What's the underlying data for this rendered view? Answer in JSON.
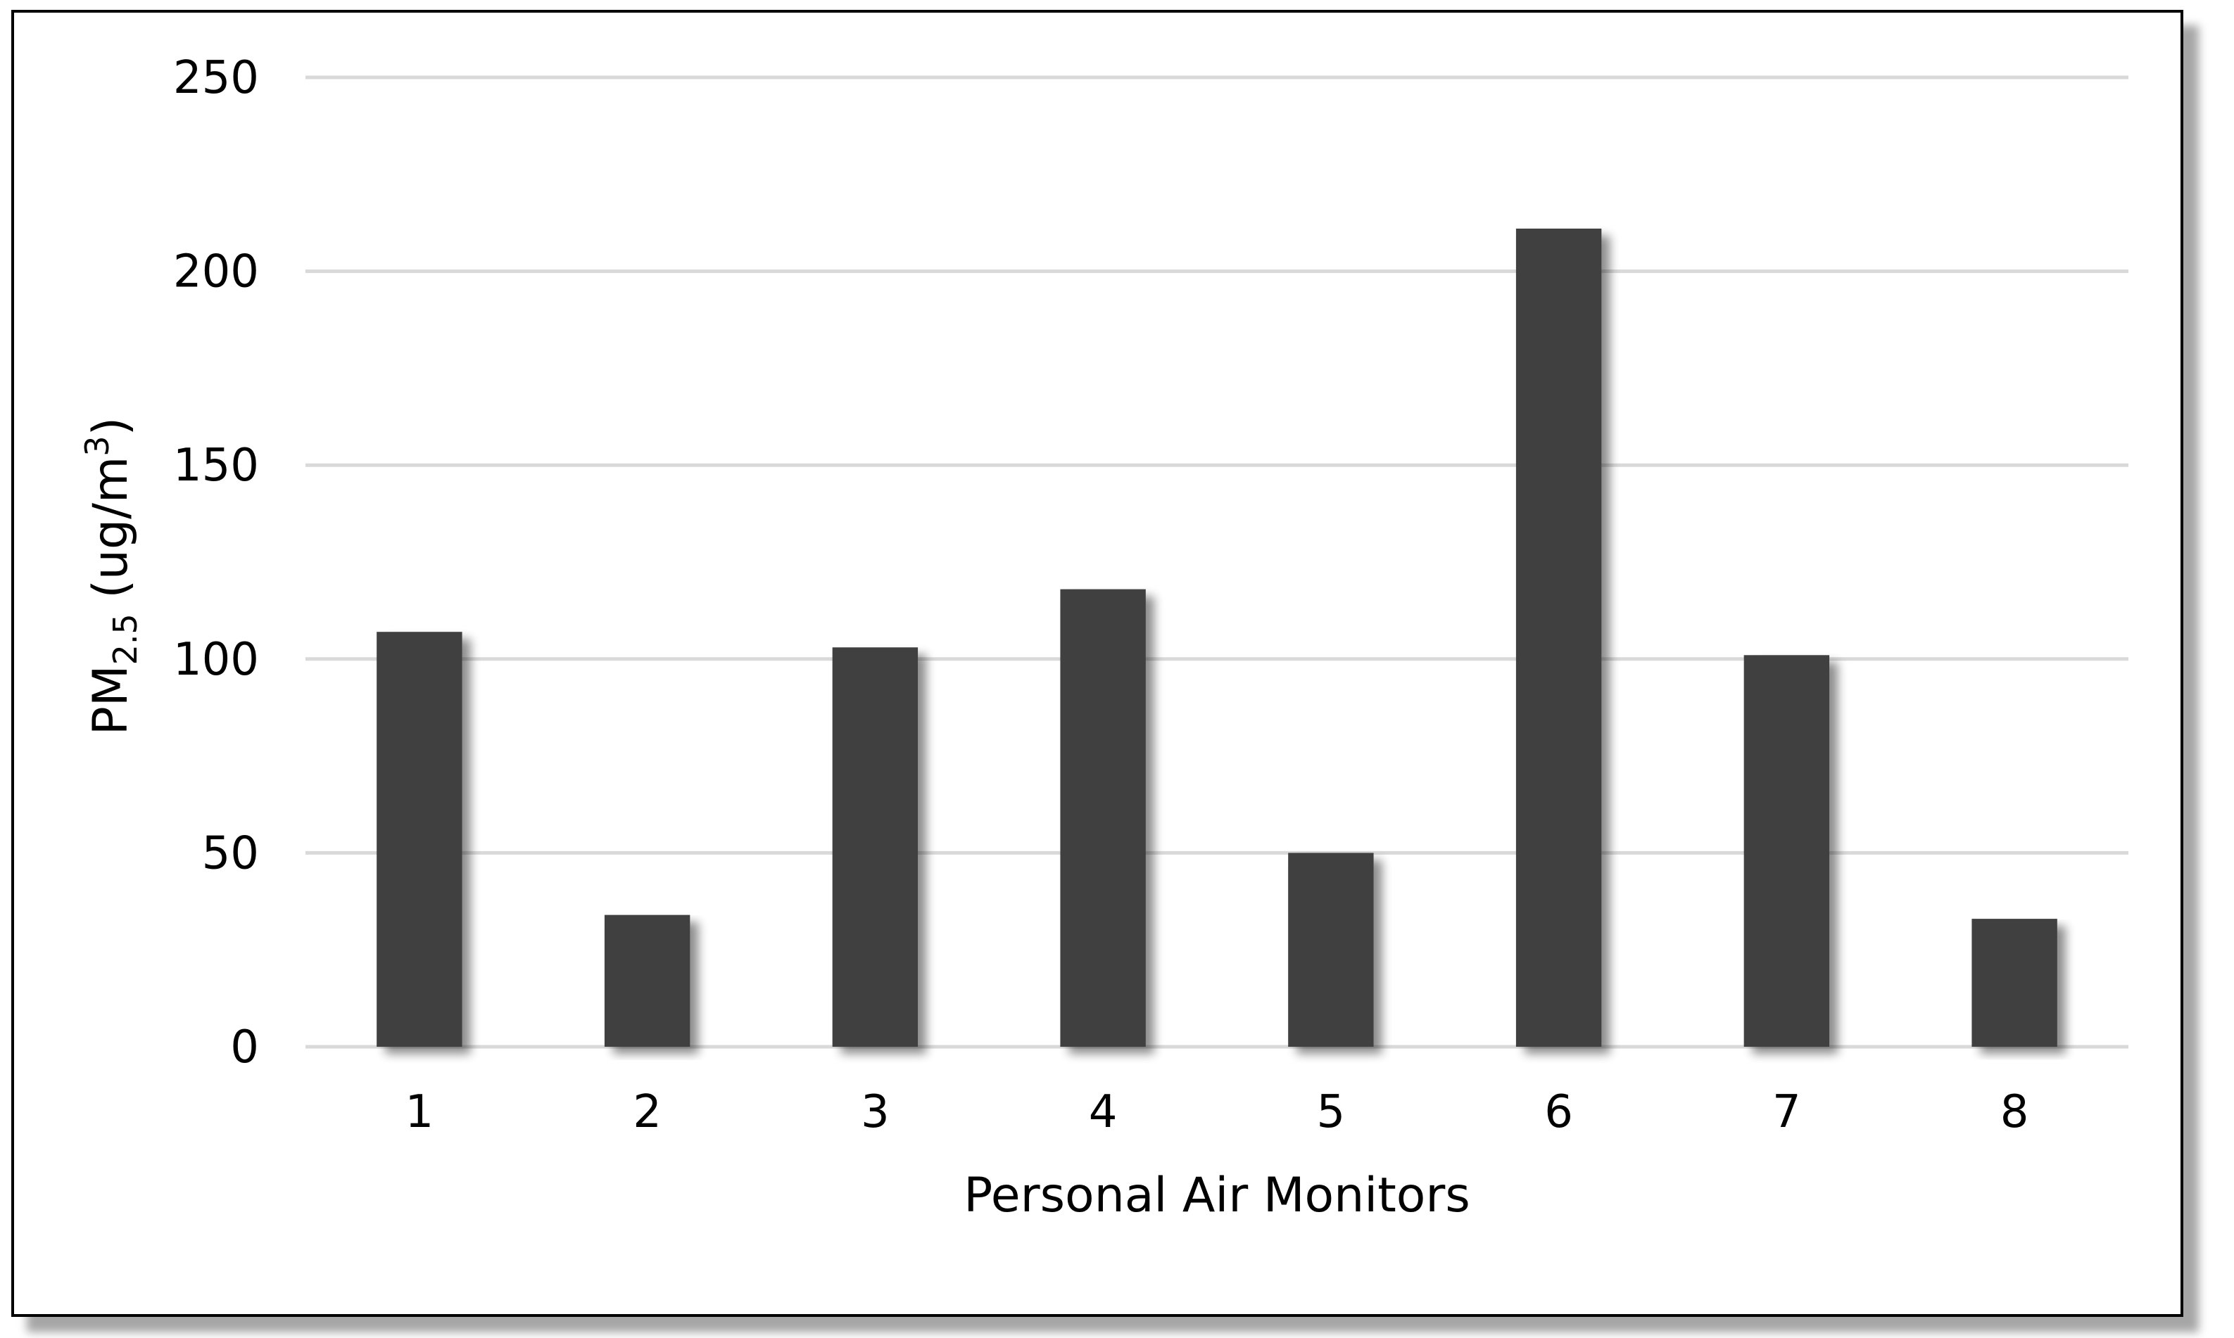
{
  "chart_data": {
    "type": "bar",
    "title": "",
    "xlabel": "Personal Air Monitors",
    "ylabel": {
      "main": "PM",
      "subscript": "2.5",
      "unit_open": " (ug/m",
      "unit_superscript": "3",
      "unit_close": ")"
    },
    "categories": [
      "1",
      "2",
      "3",
      "4",
      "5",
      "6",
      "7",
      "8"
    ],
    "values": [
      107,
      34,
      103,
      118,
      50,
      211,
      101,
      33
    ],
    "ylim": [
      0,
      250
    ],
    "yticks": [
      0,
      50,
      100,
      150,
      200,
      250
    ],
    "ytick_labels": [
      "0",
      "50",
      "100",
      "150",
      "200",
      "250"
    ],
    "grid": true,
    "legend": "none",
    "bar_color": "#404040",
    "bar_shadow": true
  }
}
